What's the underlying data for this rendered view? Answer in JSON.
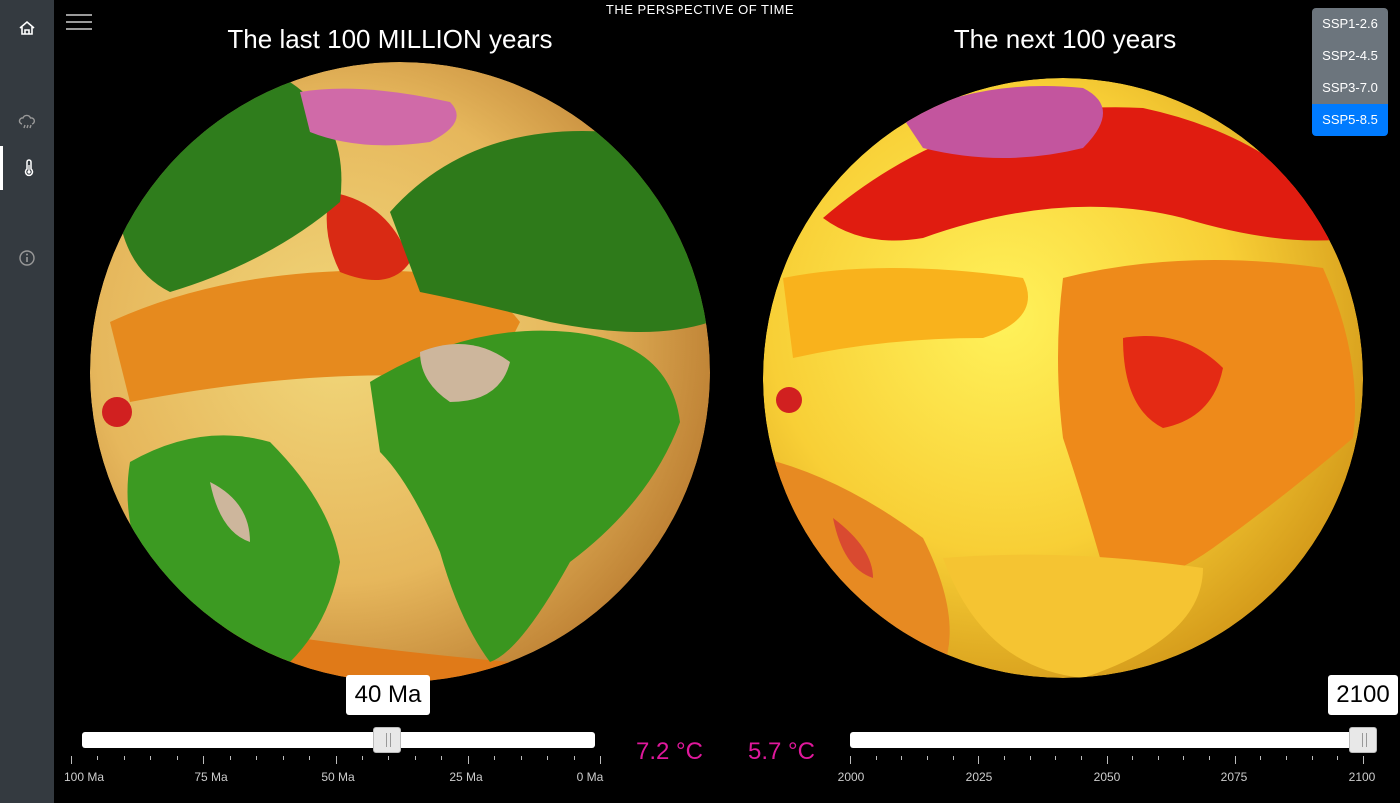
{
  "app": {
    "title": "THE PERSPECTIVE OF TIME"
  },
  "sidebar": {
    "items": [
      {
        "icon": "home-icon"
      },
      {
        "icon": "cloud-rain-icon"
      },
      {
        "icon": "thermometer-icon",
        "active": true
      },
      {
        "icon": "info-icon"
      }
    ]
  },
  "menu": {
    "icon": "hamburger-menu-icon"
  },
  "left_panel": {
    "title": "The last 100 MILLION years",
    "value_label": "40 Ma",
    "temperature": "7.2 °C",
    "slider": {
      "value": 40,
      "unit": "Ma",
      "position_fraction": 0.6
    },
    "tick_labels": [
      "100 Ma",
      "75 Ma",
      "50 Ma",
      "25 Ma",
      "0 Ma"
    ]
  },
  "right_panel": {
    "title": "The next 100 years",
    "value_label": "2100",
    "temperature": "5.7 °C",
    "slider": {
      "value": 2100,
      "position_fraction": 1.0
    },
    "tick_labels": [
      "2000",
      "2025",
      "2050",
      "2075",
      "2100"
    ]
  },
  "scenarios": {
    "options": [
      "SSP1-2.6",
      "SSP2-4.5",
      "SSP3-7.0",
      "SSP5-8.5"
    ],
    "selected": "SSP5-8.5"
  },
  "colors": {
    "accent": "#007bff",
    "temperature_text": "#e0189c",
    "sidebar_bg": "#343a40"
  }
}
